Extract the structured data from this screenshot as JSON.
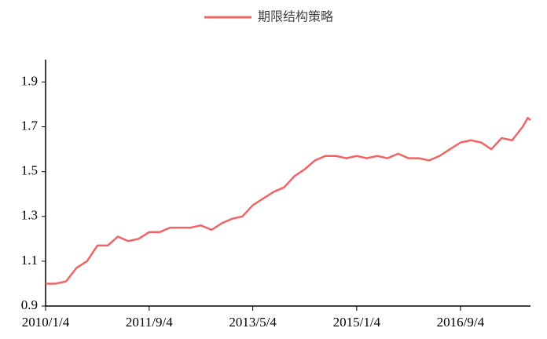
{
  "chart_data": {
    "type": "line",
    "x": [
      "2010/1/4",
      "2010/3/4",
      "2010/5/4",
      "2010/7/4",
      "2010/9/4",
      "2010/11/4",
      "2011/1/4",
      "2011/3/4",
      "2011/5/4",
      "2011/7/4",
      "2011/9/4",
      "2011/11/4",
      "2012/1/4",
      "2012/3/4",
      "2012/5/4",
      "2012/7/4",
      "2012/9/4",
      "2012/11/4",
      "2013/1/4",
      "2013/3/4",
      "2013/5/4",
      "2013/7/4",
      "2013/9/4",
      "2013/11/4",
      "2014/1/4",
      "2014/3/4",
      "2014/5/4",
      "2014/7/4",
      "2014/9/4",
      "2014/11/4",
      "2015/1/4",
      "2015/3/4",
      "2015/5/4",
      "2015/7/4",
      "2015/9/4",
      "2015/11/4",
      "2016/1/4",
      "2016/3/4",
      "2016/5/4",
      "2016/7/4",
      "2016/9/4",
      "2016/11/4",
      "2017/1/4",
      "2017/3/4",
      "2017/5/4",
      "2017/7/4",
      "2017/9/4",
      "2017/10/4",
      "2017/10/20"
    ],
    "series": [
      {
        "name": "期限结构策略",
        "color": "#f06464",
        "values": [
          1.0,
          1.0,
          1.01,
          1.07,
          1.1,
          1.17,
          1.17,
          1.21,
          1.19,
          1.2,
          1.23,
          1.23,
          1.25,
          1.25,
          1.25,
          1.26,
          1.24,
          1.27,
          1.29,
          1.3,
          1.35,
          1.38,
          1.41,
          1.43,
          1.48,
          1.51,
          1.55,
          1.57,
          1.57,
          1.56,
          1.57,
          1.56,
          1.57,
          1.56,
          1.58,
          1.56,
          1.56,
          1.55,
          1.57,
          1.6,
          1.63,
          1.64,
          1.63,
          1.6,
          1.65,
          1.64,
          1.7,
          1.74,
          1.73
        ]
      }
    ],
    "xlim": [
      "2010/1/4",
      "2017/10/20"
    ],
    "xticks": [
      "2010/1/4",
      "2011/9/4",
      "2013/5/4",
      "2015/1/4",
      "2016/9/4"
    ],
    "ylim": [
      0.9,
      2.0
    ],
    "yticks": [
      0.9,
      1.1,
      1.3,
      1.5,
      1.7,
      1.9
    ],
    "legend": "top"
  }
}
